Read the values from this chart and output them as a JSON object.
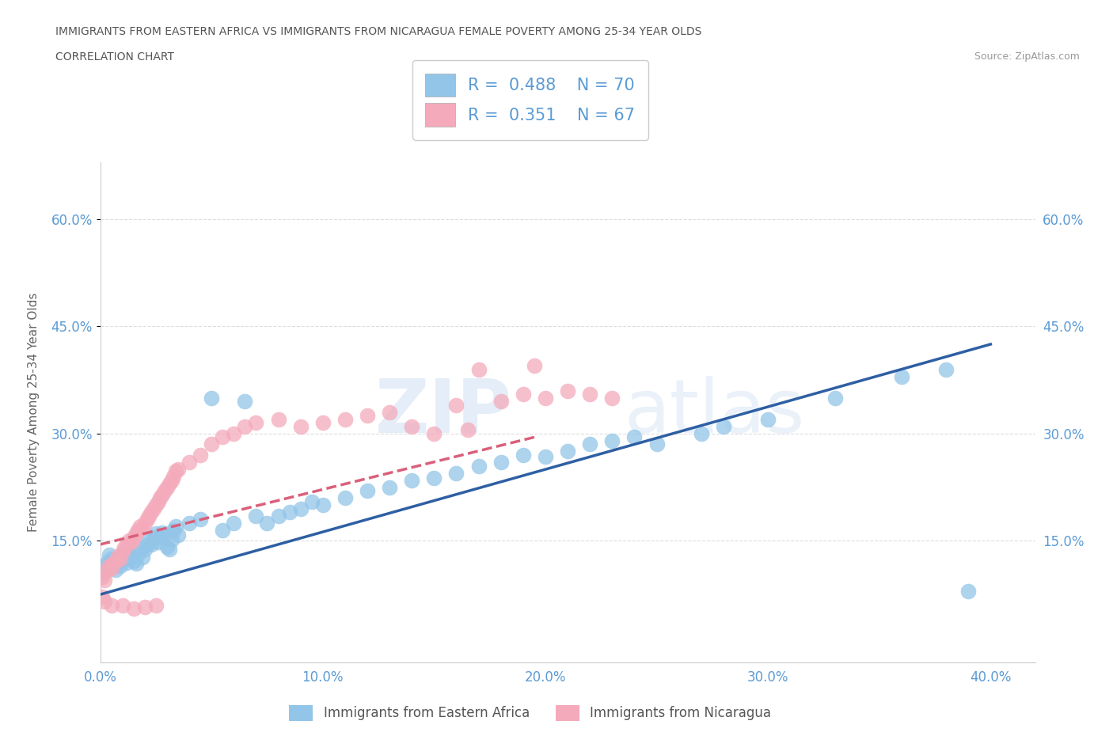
{
  "title_line1": "IMMIGRANTS FROM EASTERN AFRICA VS IMMIGRANTS FROM NICARAGUA FEMALE POVERTY AMONG 25-34 YEAR OLDS",
  "title_line2": "CORRELATION CHART",
  "source_text": "Source: ZipAtlas.com",
  "ylabel": "Female Poverty Among 25-34 Year Olds",
  "xlim": [
    0.0,
    0.42
  ],
  "ylim": [
    -0.02,
    0.68
  ],
  "xticks": [
    0.0,
    0.1,
    0.2,
    0.3,
    0.4
  ],
  "yticks": [
    0.15,
    0.3,
    0.45,
    0.6
  ],
  "ytick_labels": [
    "15.0%",
    "30.0%",
    "45.0%",
    "60.0%"
  ],
  "xtick_labels": [
    "0.0%",
    "10.0%",
    "20.0%",
    "30.0%",
    "40.0%"
  ],
  "color_blue": "#92C5E8",
  "color_pink": "#F4AABB",
  "color_blue_line": "#2E5FA3",
  "color_pink_line": "#D9607A",
  "R_blue": 0.488,
  "N_blue": 70,
  "R_pink": 0.351,
  "N_pink": 67,
  "legend_label_blue": "Immigrants from Eastern Africa",
  "legend_label_pink": "Immigrants from Nicaragua",
  "watermark": "ZIPatlas",
  "background_color": "#FFFFFF",
  "grid_color": "#DDDDDD",
  "title_color": "#555555",
  "axis_label_color": "#666666",
  "tick_color": "#5B9BD5",
  "blue_line_x0": 0.0,
  "blue_line_y0": 0.075,
  "blue_line_x1": 0.4,
  "blue_line_y1": 0.425,
  "pink_line_x0": 0.0,
  "pink_line_y0": 0.145,
  "pink_line_x1": 0.195,
  "pink_line_y1": 0.295,
  "blue_scatter_x": [
    0.001,
    0.002,
    0.003,
    0.004,
    0.005,
    0.006,
    0.007,
    0.008,
    0.009,
    0.01,
    0.011,
    0.012,
    0.013,
    0.014,
    0.015,
    0.016,
    0.017,
    0.018,
    0.019,
    0.02,
    0.021,
    0.022,
    0.023,
    0.024,
    0.025,
    0.026,
    0.027,
    0.028,
    0.029,
    0.03,
    0.031,
    0.032,
    0.033,
    0.034,
    0.035,
    0.04,
    0.045,
    0.05,
    0.055,
    0.06,
    0.065,
    0.07,
    0.075,
    0.08,
    0.085,
    0.09,
    0.095,
    0.1,
    0.11,
    0.12,
    0.13,
    0.14,
    0.15,
    0.16,
    0.17,
    0.18,
    0.19,
    0.2,
    0.21,
    0.22,
    0.23,
    0.24,
    0.25,
    0.27,
    0.28,
    0.3,
    0.33,
    0.36,
    0.38,
    0.39
  ],
  "blue_scatter_y": [
    0.105,
    0.115,
    0.12,
    0.13,
    0.125,
    0.115,
    0.11,
    0.12,
    0.115,
    0.13,
    0.125,
    0.12,
    0.135,
    0.128,
    0.122,
    0.118,
    0.132,
    0.14,
    0.127,
    0.138,
    0.145,
    0.15,
    0.145,
    0.155,
    0.16,
    0.148,
    0.155,
    0.162,
    0.158,
    0.142,
    0.138,
    0.152,
    0.165,
    0.17,
    0.158,
    0.175,
    0.18,
    0.35,
    0.165,
    0.175,
    0.345,
    0.185,
    0.175,
    0.185,
    0.19,
    0.195,
    0.205,
    0.2,
    0.21,
    0.22,
    0.225,
    0.235,
    0.238,
    0.245,
    0.255,
    0.26,
    0.27,
    0.268,
    0.275,
    0.285,
    0.29,
    0.295,
    0.285,
    0.3,
    0.31,
    0.32,
    0.35,
    0.38,
    0.39,
    0.08
  ],
  "pink_scatter_x": [
    0.001,
    0.002,
    0.003,
    0.004,
    0.005,
    0.006,
    0.007,
    0.008,
    0.009,
    0.01,
    0.011,
    0.012,
    0.013,
    0.014,
    0.015,
    0.016,
    0.017,
    0.018,
    0.019,
    0.02,
    0.021,
    0.022,
    0.023,
    0.024,
    0.025,
    0.026,
    0.027,
    0.028,
    0.029,
    0.03,
    0.031,
    0.032,
    0.033,
    0.034,
    0.035,
    0.04,
    0.045,
    0.05,
    0.055,
    0.06,
    0.065,
    0.07,
    0.08,
    0.09,
    0.1,
    0.11,
    0.12,
    0.13,
    0.14,
    0.15,
    0.16,
    0.165,
    0.17,
    0.18,
    0.19,
    0.195,
    0.2,
    0.21,
    0.22,
    0.23,
    0.001,
    0.002,
    0.005,
    0.01,
    0.015,
    0.02,
    0.025
  ],
  "pink_scatter_y": [
    0.1,
    0.095,
    0.108,
    0.115,
    0.112,
    0.118,
    0.122,
    0.128,
    0.125,
    0.135,
    0.14,
    0.145,
    0.15,
    0.148,
    0.155,
    0.16,
    0.165,
    0.17,
    0.168,
    0.175,
    0.18,
    0.185,
    0.19,
    0.195,
    0.2,
    0.205,
    0.21,
    0.215,
    0.22,
    0.225,
    0.23,
    0.235,
    0.24,
    0.248,
    0.25,
    0.26,
    0.27,
    0.285,
    0.295,
    0.3,
    0.31,
    0.315,
    0.32,
    0.31,
    0.315,
    0.32,
    0.325,
    0.33,
    0.31,
    0.3,
    0.34,
    0.305,
    0.39,
    0.345,
    0.355,
    0.395,
    0.35,
    0.36,
    0.355,
    0.35,
    0.072,
    0.065,
    0.06,
    0.06,
    0.055,
    0.058,
    0.06
  ]
}
